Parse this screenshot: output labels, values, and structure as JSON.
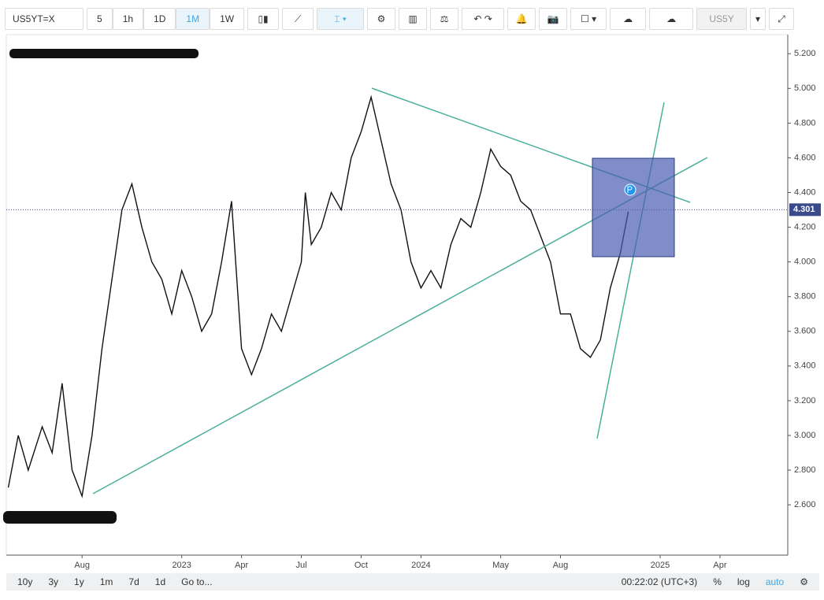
{
  "toolbar": {
    "symbol": "US5YT=X",
    "intervals": [
      "5",
      "1h",
      "1D",
      "1M",
      "1W"
    ],
    "compare": "US5Y"
  },
  "bottom_bar": {
    "ranges": [
      "10y",
      "3y",
      "1y",
      "1m",
      "7d",
      "1d"
    ],
    "goto": "Go to...",
    "clock": "00:22:02 (UTC+3)",
    "percent": "%",
    "log": "log",
    "auto": "auto"
  },
  "chart_data": {
    "type": "line",
    "color": "#111111",
    "x": [
      3.3,
      3.8,
      4.3,
      5,
      5.5,
      6,
      6.5,
      7,
      7.5,
      8,
      8.5,
      9,
      9.5,
      10,
      10.5,
      11,
      11.5,
      12,
      12.5,
      13,
      13.5,
      14,
      14.5,
      15,
      15.5,
      16,
      16.5,
      17,
      17.5,
      18,
      18.2,
      18.5,
      19,
      19.5,
      20,
      20.5,
      21,
      21.5,
      22,
      22.5,
      23,
      23.5,
      24,
      24.5,
      25,
      25.5,
      26,
      26.5,
      27,
      27.5,
      28,
      28.5,
      29,
      29.5,
      30,
      30.5,
      31,
      31.5,
      32,
      32.5,
      33,
      33.5,
      34,
      34.4
    ],
    "values": [
      2.7,
      3.0,
      2.8,
      3.05,
      2.9,
      3.3,
      2.8,
      2.65,
      3.0,
      3.5,
      3.9,
      4.3,
      4.45,
      4.2,
      4.0,
      3.9,
      3.7,
      3.95,
      3.8,
      3.6,
      3.7,
      4.0,
      4.35,
      3.5,
      3.35,
      3.5,
      3.7,
      3.6,
      3.8,
      4.0,
      4.4,
      4.1,
      4.2,
      4.4,
      4.3,
      4.6,
      4.75,
      4.95,
      4.7,
      4.45,
      4.3,
      4.0,
      3.85,
      3.95,
      3.85,
      4.1,
      4.25,
      4.2,
      4.4,
      4.65,
      4.55,
      4.5,
      4.35,
      4.3,
      4.15,
      4.0,
      3.7,
      3.7,
      3.5,
      3.45,
      3.55,
      3.85,
      4.05,
      4.29
    ],
    "last_price": 4.301,
    "xlim": [
      3.2,
      42.4
    ],
    "xticks": [
      {
        "value": 7,
        "label": "Aug"
      },
      {
        "value": 12,
        "label": "2023"
      },
      {
        "value": 15,
        "label": "Apr"
      },
      {
        "value": 18,
        "label": "Jul"
      },
      {
        "value": 21,
        "label": "Oct"
      },
      {
        "value": 24,
        "label": "2024"
      },
      {
        "value": 28,
        "label": "May"
      },
      {
        "value": 31,
        "label": "Aug"
      },
      {
        "value": 36,
        "label": "2025"
      },
      {
        "value": 39,
        "label": "Apr"
      }
    ],
    "ylim": [
      2.31,
      5.31
    ],
    "yticks": [
      {
        "value": 2.6,
        "label": "2.600"
      },
      {
        "value": 2.8,
        "label": "2.800"
      },
      {
        "value": 3.0,
        "label": "3.000"
      },
      {
        "value": 3.2,
        "label": "3.200"
      },
      {
        "value": 3.4,
        "label": "3.400"
      },
      {
        "value": 3.6,
        "label": "3.600"
      },
      {
        "value": 3.8,
        "label": "3.800"
      },
      {
        "value": 4.0,
        "label": "4.000"
      },
      {
        "value": 4.2,
        "label": "4.200"
      },
      {
        "value": 4.4,
        "label": "4.400"
      },
      {
        "value": 4.6,
        "label": "4.600"
      },
      {
        "value": 4.8,
        "label": "4.800"
      },
      {
        "value": 5.0,
        "label": "5.000"
      },
      {
        "value": 5.2,
        "label": "5.200"
      }
    ]
  }
}
